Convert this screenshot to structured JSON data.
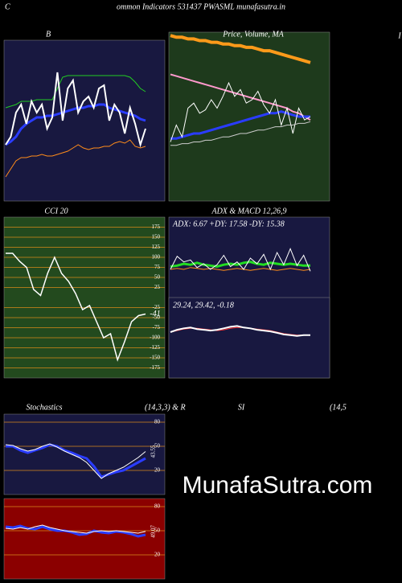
{
  "page": {
    "left": "C",
    "title": "ommon  Indicators 531437 PWASML munafasutra.in",
    "edge": "I",
    "watermark": "MunafaSutra.com"
  },
  "chart_data": [
    {
      "type": "line",
      "title": "B",
      "ylim": [
        0,
        100
      ],
      "series": [
        {
          "color": "#ff8c1a",
          "width": 1,
          "values": [
            15,
            20,
            25,
            27,
            27,
            28,
            28,
            29,
            28,
            28,
            29,
            30,
            31,
            33,
            35,
            33,
            32,
            33,
            33,
            34,
            34,
            36,
            37,
            36,
            38,
            34,
            33,
            34
          ]
        },
        {
          "color": "#22cc22",
          "width": 1,
          "values": [
            58,
            59,
            60,
            62,
            62,
            62,
            63,
            63,
            63,
            63,
            70,
            77,
            78,
            78,
            78,
            78,
            78,
            78,
            78,
            78,
            78,
            78,
            78,
            78,
            77,
            74,
            70,
            68
          ]
        },
        {
          "color": "#2a3cff",
          "width": 3,
          "values": [
            35,
            37,
            40,
            45,
            48,
            50,
            52,
            52,
            53,
            53,
            54,
            55,
            56,
            57,
            58,
            58,
            59,
            59,
            60,
            60,
            58,
            57,
            56,
            55,
            54,
            53,
            51,
            50
          ]
        },
        {
          "color": "#ffffff",
          "width": 2,
          "values": [
            35,
            40,
            55,
            60,
            48,
            62,
            55,
            60,
            45,
            52,
            80,
            50,
            70,
            75,
            55,
            62,
            65,
            58,
            70,
            72,
            50,
            60,
            55,
            42,
            58,
            48,
            35,
            45
          ]
        }
      ]
    },
    {
      "type": "line",
      "title": "Price, Volume, MA",
      "ylim": [
        0,
        100
      ],
      "series": [
        {
          "color": "#ff9a1a",
          "width": 4,
          "values": [
            98,
            97,
            97,
            96,
            96,
            95,
            95,
            94,
            94,
            93,
            93,
            92,
            92,
            91,
            91,
            90,
            89,
            89,
            88,
            87,
            86,
            85,
            84,
            83,
            82
          ]
        },
        {
          "color": "#ff99cc",
          "width": 2,
          "values": [
            75,
            74,
            73,
            72,
            71,
            70,
            69,
            68,
            67,
            66,
            65,
            64,
            63,
            62,
            61,
            60,
            59,
            58,
            57,
            56,
            55,
            53,
            52,
            50,
            48
          ]
        },
        {
          "color": "#2a3cff",
          "width": 3,
          "values": [
            37,
            37,
            38,
            39,
            40,
            40,
            41,
            42,
            43,
            44,
            45,
            46,
            47,
            48,
            49,
            50,
            51,
            52,
            52,
            53,
            52,
            51,
            50,
            50,
            50
          ]
        },
        {
          "color": "#ffffff",
          "width": 1,
          "values": [
            35,
            45,
            38,
            55,
            58,
            52,
            54,
            60,
            55,
            62,
            70,
            62,
            66,
            58,
            60,
            65,
            57,
            52,
            60,
            45,
            55,
            40,
            55,
            48,
            50
          ]
        },
        {
          "color": "#cccccc",
          "width": 1,
          "values": [
            33,
            33,
            34,
            34,
            35,
            35,
            36,
            36,
            37,
            38,
            38,
            39,
            40,
            40,
            41,
            42,
            42,
            43,
            44,
            44,
            45,
            45,
            46,
            46,
            47
          ]
        }
      ]
    },
    {
      "type": "line",
      "title": "CCI 20",
      "ylim": [
        -200,
        200
      ],
      "yticks": [
        175,
        150,
        125,
        100,
        75,
        50,
        25,
        -25,
        -50,
        -75,
        -100,
        -125,
        -150,
        -175
      ],
      "series": [
        {
          "color": "#ffffff",
          "width": 1.5,
          "values": [
            110,
            110,
            90,
            75,
            20,
            5,
            60,
            100,
            60,
            40,
            10,
            -30,
            -20,
            -60,
            -100,
            -90,
            -155,
            -110,
            -60,
            -45,
            -41
          ]
        }
      ]
    },
    {
      "type": "line",
      "title": "ADX  & MACD 12,26,9",
      "subtitle": "ADX: 6.67 +DY: 17.58 -DY: 15.38",
      "ylim": [
        0,
        60
      ],
      "series": [
        {
          "color": "#ff8c1a",
          "width": 1,
          "values": [
            30,
            31,
            30,
            32,
            31,
            30,
            31,
            30,
            29,
            30,
            31,
            30,
            29,
            30,
            31,
            30,
            29,
            30,
            31,
            30,
            29,
            30
          ]
        },
        {
          "color": "#22dd22",
          "width": 3,
          "values": [
            33,
            34,
            36,
            35,
            37,
            35,
            34,
            33,
            35,
            36,
            35,
            37,
            38,
            36,
            35,
            37,
            36,
            35,
            36,
            35,
            34,
            34
          ]
        },
        {
          "color": "#ffffff",
          "width": 1,
          "values": [
            30,
            44,
            38,
            40,
            32,
            36,
            30,
            35,
            45,
            33,
            38,
            30,
            42,
            36,
            46,
            30,
            48,
            35,
            52,
            34,
            45,
            28
          ]
        }
      ]
    },
    {
      "type": "line",
      "subtitle": "29.24, 29.42, -0.18",
      "ylim": [
        -60,
        40
      ],
      "series": [
        {
          "color": "#ff3333",
          "width": 1,
          "values": [
            0,
            2,
            4,
            5,
            5,
            4,
            3,
            2,
            3,
            5,
            6,
            6,
            5,
            4,
            3,
            2,
            0,
            -2,
            -3,
            -4,
            -4,
            -4
          ]
        },
        {
          "color": "#ffffff",
          "width": 2,
          "values": [
            0,
            3,
            5,
            6,
            4,
            3,
            2,
            3,
            5,
            7,
            8,
            6,
            5,
            3,
            2,
            1,
            -1,
            -3,
            -4,
            -5,
            -4,
            -4
          ]
        }
      ]
    },
    {
      "type": "line",
      "title": "Stochastics",
      "subtitle": "(14,3,3) & R",
      "ylim": [
        -10,
        90
      ],
      "yticks": [
        80,
        50,
        20
      ],
      "series": [
        {
          "color": "#2a3cff",
          "width": 3,
          "values": [
            50,
            50,
            45,
            42,
            45,
            48,
            52,
            50,
            45,
            42,
            38,
            35,
            25,
            12,
            15,
            18,
            20,
            25,
            30,
            35
          ]
        },
        {
          "color": "#ffffff",
          "width": 1,
          "values": [
            52,
            51,
            47,
            44,
            46,
            50,
            53,
            49,
            44,
            40,
            36,
            30,
            20,
            10,
            16,
            20,
            24,
            30,
            36,
            43.55
          ]
        }
      ]
    },
    {
      "type": "line",
      "title": "SI",
      "subtitle": "(14,5",
      "ylim": [
        -10,
        90
      ],
      "yticks": [
        80,
        50,
        20
      ],
      "series": [
        {
          "color": "#2a3cff",
          "width": 3,
          "values": [
            55,
            54,
            56,
            53,
            52,
            55,
            52,
            50,
            50,
            48,
            45,
            46,
            50,
            48,
            47,
            49,
            48,
            46,
            43,
            45
          ]
        },
        {
          "color": "#ffffff",
          "width": 1,
          "values": [
            53,
            52,
            54,
            52,
            55,
            57,
            54,
            52,
            50,
            49,
            48,
            47,
            49,
            50,
            49,
            50,
            49,
            48,
            47,
            49.07
          ]
        }
      ]
    }
  ]
}
